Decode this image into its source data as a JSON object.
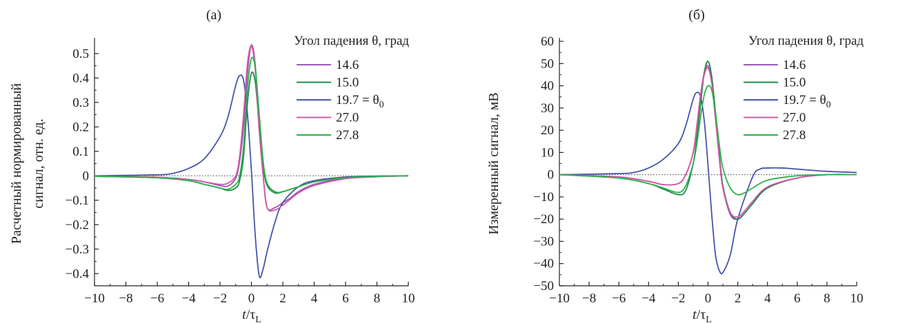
{
  "chart_data": [
    {
      "type": "line",
      "panel": "(а)",
      "ylabel_line1": "Расчетный нормированный",
      "ylabel_line2": "сигнал, отн. ед.",
      "xlabel_main": "t",
      "xlabel_sep": "/τ",
      "xlabel_sub": "L",
      "xlim": [
        -10,
        10
      ],
      "ylim": [
        -0.45,
        0.55
      ],
      "xticks": [
        -10,
        -8,
        -6,
        -4,
        -2,
        0,
        2,
        4,
        6,
        8,
        10
      ],
      "xtick_labels": [
        "−10",
        "−8",
        "−6",
        "−4",
        "−2",
        "0",
        "2",
        "4",
        "6",
        "8",
        "10"
      ],
      "yticks": [
        -0.4,
        -0.3,
        -0.2,
        -0.1,
        0,
        0.1,
        0.2,
        0.3,
        0.4,
        0.5
      ],
      "ytick_labels": [
        "−0.4",
        "−0.3",
        "−0.2",
        "−0.1",
        "0",
        "0.1",
        "0.2",
        "0.3",
        "0.4",
        "0.5"
      ],
      "legend_title": "Угол падения θ, град",
      "series": [
        {
          "name": "14.6",
          "color": "#9b59b6",
          "x": [
            -10,
            -6,
            -4,
            -3,
            -2,
            -1.5,
            -1,
            -0.75,
            -0.5,
            -0.25,
            0,
            0.25,
            0.5,
            0.75,
            1,
            1.5,
            2,
            2.5,
            3,
            4,
            6,
            8,
            10
          ],
          "y": [
            -0.002,
            -0.006,
            -0.015,
            -0.025,
            -0.04,
            -0.042,
            -0.01,
            0.06,
            0.2,
            0.42,
            0.535,
            0.45,
            0.2,
            0.0,
            -0.13,
            -0.13,
            -0.11,
            -0.09,
            -0.065,
            -0.035,
            -0.01,
            -0.003,
            0
          ]
        },
        {
          "name": "15.0",
          "color": "#1e8a4a",
          "x": [
            -10,
            -6,
            -4,
            -3,
            -2,
            -1.5,
            -1,
            -0.75,
            -0.5,
            -0.25,
            0,
            0.25,
            0.5,
            0.75,
            1,
            1.5,
            2,
            2.5,
            3,
            4,
            6,
            8,
            10
          ],
          "y": [
            -0.002,
            -0.008,
            -0.02,
            -0.035,
            -0.05,
            -0.06,
            -0.05,
            -0.02,
            0.08,
            0.3,
            0.42,
            0.38,
            0.2,
            0.04,
            -0.04,
            -0.07,
            -0.065,
            -0.055,
            -0.045,
            -0.025,
            -0.008,
            -0.002,
            0
          ]
        },
        {
          "name": "19.7 = θ",
          "sub": "0",
          "color": "#4654a8",
          "x": [
            -10,
            -6,
            -5,
            -4,
            -3,
            -2,
            -1.5,
            -1,
            -0.75,
            -0.5,
            -0.25,
            0,
            0.25,
            0.5,
            0.75,
            1,
            1.5,
            2,
            3,
            4,
            6,
            8,
            10
          ],
          "y": [
            0.0,
            0.004,
            0.01,
            0.03,
            0.07,
            0.16,
            0.24,
            0.37,
            0.41,
            0.39,
            0.25,
            0.02,
            -0.25,
            -0.41,
            -0.38,
            -0.31,
            -0.19,
            -0.11,
            -0.045,
            -0.02,
            -0.005,
            -0.001,
            0
          ]
        },
        {
          "name": "27.0",
          "color": "#d257a8",
          "x": [
            -10,
            -6,
            -4,
            -3,
            -2,
            -1.5,
            -1,
            -0.75,
            -0.5,
            -0.25,
            0,
            0.25,
            0.5,
            0.75,
            1,
            1.5,
            2,
            2.5,
            3,
            4,
            6,
            8,
            10
          ],
          "y": [
            -0.002,
            -0.006,
            -0.015,
            -0.025,
            -0.035,
            -0.03,
            0.0,
            0.08,
            0.25,
            0.46,
            0.53,
            0.43,
            0.18,
            0.0,
            -0.13,
            -0.14,
            -0.12,
            -0.095,
            -0.07,
            -0.04,
            -0.012,
            -0.004,
            0
          ]
        },
        {
          "name": "27.8",
          "color": "#2bb34a",
          "x": [
            -10,
            -6,
            -4,
            -3,
            -2,
            -1.5,
            -1,
            -0.75,
            -0.5,
            -0.25,
            0,
            0.25,
            0.5,
            0.75,
            1,
            1.5,
            2,
            2.5,
            3,
            4,
            6,
            8,
            10
          ],
          "y": [
            -0.002,
            -0.008,
            -0.02,
            -0.035,
            -0.05,
            -0.055,
            -0.035,
            0.0,
            0.12,
            0.36,
            0.48,
            0.44,
            0.25,
            0.06,
            -0.03,
            -0.065,
            -0.065,
            -0.055,
            -0.045,
            -0.025,
            -0.008,
            -0.002,
            0
          ]
        }
      ]
    },
    {
      "type": "line",
      "panel": "(б)",
      "ylabel_line1": "Измеренный сигнал, мВ",
      "ylabel_line2": "",
      "xlabel_main": "t",
      "xlabel_sep": "/τ",
      "xlabel_sub": "L",
      "xlim": [
        -10,
        10
      ],
      "ylim": [
        -50,
        60
      ],
      "xticks": [
        -10,
        -8,
        -6,
        -4,
        -2,
        0,
        2,
        4,
        6,
        8,
        10
      ],
      "xtick_labels": [
        "−10",
        "−8",
        "−6",
        "−4",
        "−2",
        "0",
        "2",
        "4",
        "6",
        "8",
        "10"
      ],
      "yticks": [
        -50,
        -40,
        -30,
        -20,
        -10,
        0,
        10,
        20,
        30,
        40,
        50,
        60
      ],
      "ytick_labels": [
        "−50",
        "−40",
        "−30",
        "−20",
        "−10",
        "0",
        "10",
        "20",
        "30",
        "40",
        "50",
        "60"
      ],
      "legend_title": "Угол падения θ, град",
      "series": [
        {
          "name": "14.6",
          "color": "#9b59b6",
          "x": [
            -10,
            -6,
            -4,
            -3,
            -2,
            -1.5,
            -1,
            -0.75,
            -0.5,
            -0.25,
            0,
            0.25,
            0.5,
            0.75,
            1,
            1.5,
            2,
            2.5,
            3,
            4,
            6,
            8,
            10
          ],
          "y": [
            0,
            -1,
            -3,
            -4.5,
            -4,
            0,
            10,
            22,
            36,
            46,
            49,
            42,
            26,
            8,
            -6,
            -18,
            -20,
            -17,
            -13,
            -6,
            -1.5,
            0,
            0
          ]
        },
        {
          "name": "15.0",
          "color": "#1e8a4a",
          "x": [
            -10,
            -6,
            -4,
            -3,
            -2,
            -1.5,
            -1,
            -0.75,
            -0.5,
            -0.25,
            0,
            0.25,
            0.5,
            0.75,
            1,
            1.5,
            2,
            2.5,
            3,
            4,
            6,
            8,
            10
          ],
          "y": [
            0,
            -1.5,
            -4,
            -6.5,
            -9,
            -7,
            5,
            17,
            32,
            46,
            51,
            44,
            28,
            10,
            -5,
            -17,
            -20,
            -17,
            -13,
            -6,
            -1.5,
            0,
            0
          ]
        },
        {
          "name": "19.7 = θ",
          "sub": "0",
          "color": "#4654a8",
          "x": [
            -10,
            -6,
            -5,
            -4,
            -3,
            -2,
            -1.5,
            -1,
            -0.75,
            -0.5,
            -0.25,
            0,
            0.25,
            0.5,
            0.75,
            1,
            1.5,
            2,
            3,
            3.5,
            4,
            5,
            6,
            8,
            10
          ],
          "y": [
            0,
            0.5,
            1,
            3,
            7,
            14,
            22,
            34,
            37,
            35,
            24,
            4,
            -18,
            -36,
            -43,
            -44,
            -36,
            -20,
            -1,
            2.5,
            3,
            3,
            2.5,
            1.5,
            1
          ]
        },
        {
          "name": "27.0",
          "color": "#d257a8",
          "x": [
            -10,
            -6,
            -4,
            -3,
            -2,
            -1.5,
            -1,
            -0.75,
            -0.5,
            -0.25,
            0,
            0.25,
            0.5,
            0.75,
            1,
            1.5,
            2,
            2.5,
            3,
            4,
            6,
            8,
            10
          ],
          "y": [
            0,
            -1,
            -3,
            -4.5,
            -4,
            0,
            10,
            22,
            36,
            45,
            48,
            41,
            25,
            8,
            -6,
            -17,
            -19,
            -16,
            -12,
            -5.5,
            -1.5,
            0,
            0
          ]
        },
        {
          "name": "27.8",
          "color": "#2bb34a",
          "x": [
            -10,
            -6,
            -4,
            -3,
            -2,
            -1.5,
            -1,
            -0.75,
            -0.5,
            -0.25,
            0,
            0.25,
            0.5,
            0.75,
            1,
            1.5,
            2,
            2.5,
            3,
            4,
            6,
            8,
            10
          ],
          "y": [
            0,
            -1.5,
            -4,
            -6,
            -8,
            -5,
            5,
            14,
            26,
            36,
            40,
            38,
            28,
            14,
            3,
            -6,
            -9,
            -8,
            -6,
            -2.5,
            -0.5,
            0,
            0
          ]
        }
      ]
    }
  ]
}
